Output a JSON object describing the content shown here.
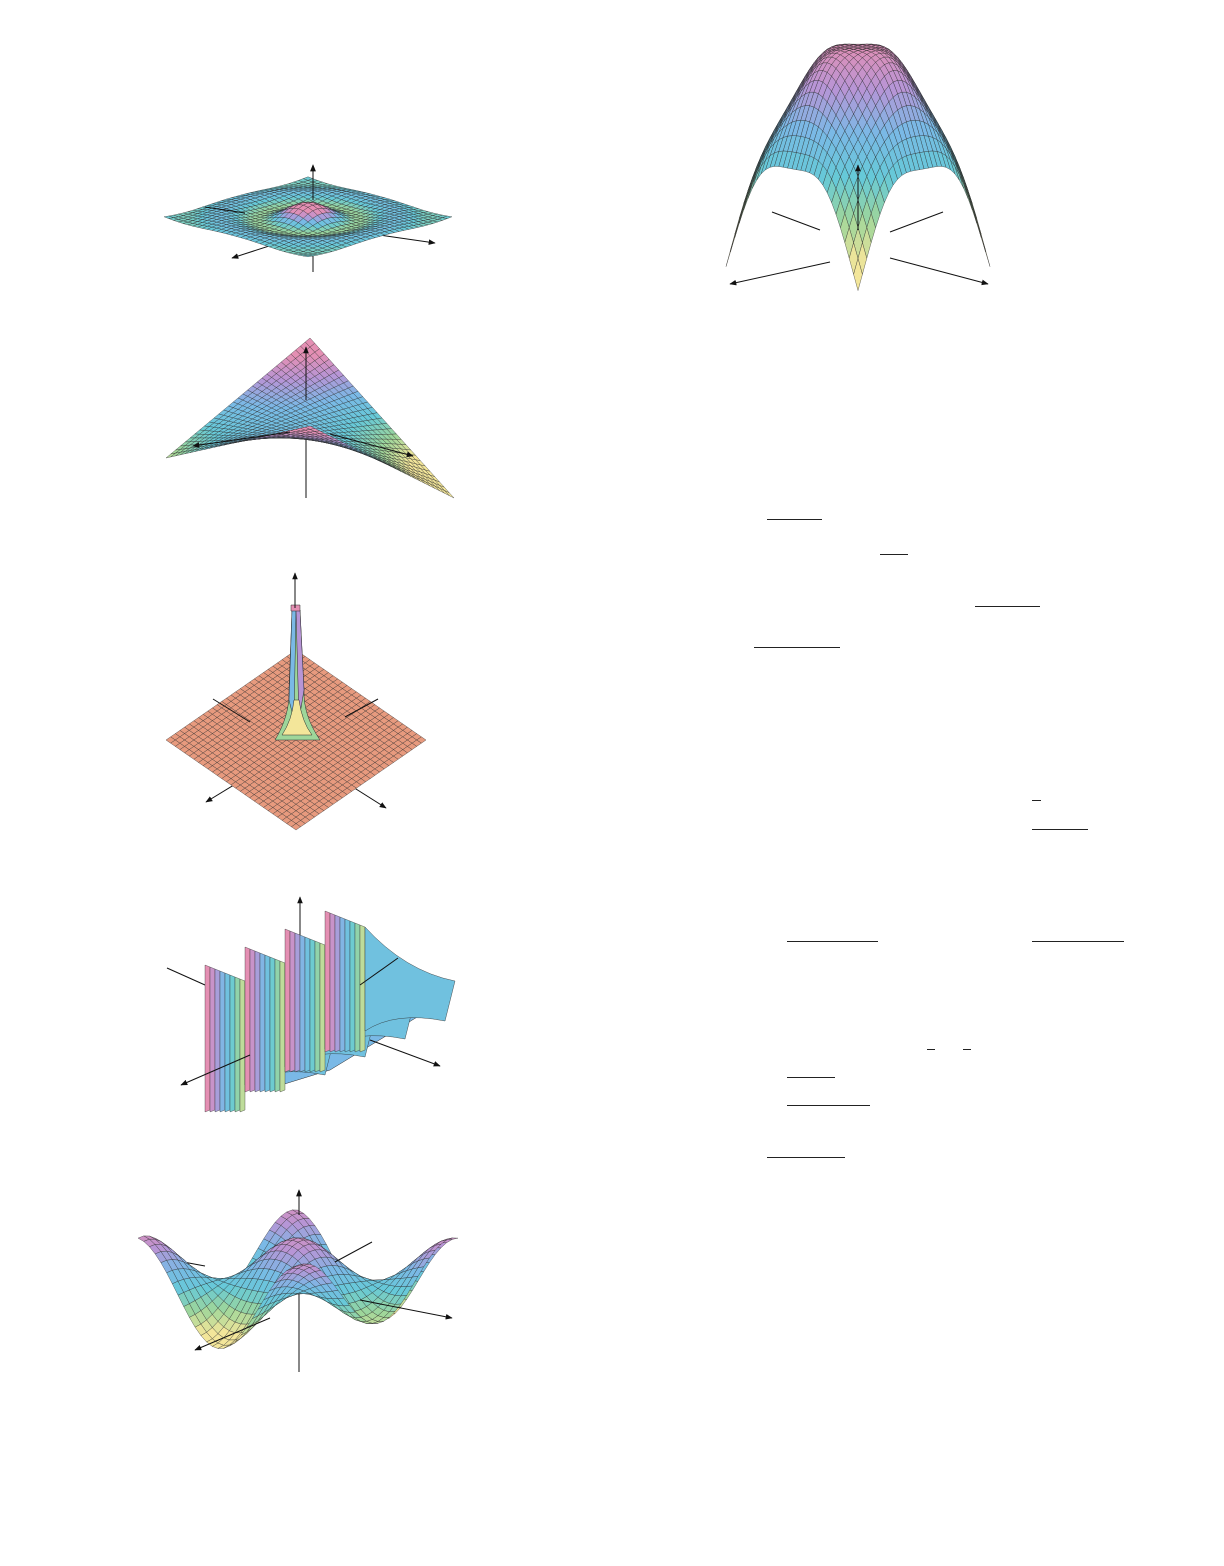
{
  "figures": [
    {
      "id": "ripple",
      "shape": "radial-ripple-surface",
      "colormap": "rainbow-pastel"
    },
    {
      "id": "saddle-sheet",
      "shape": "twisted-saddle-surface",
      "colormap": "rainbow-pastel"
    },
    {
      "id": "spike",
      "shape": "narrow-peak-on-plane",
      "colormap": "salmon-plane"
    },
    {
      "id": "folds",
      "shape": "folded-walls-surface",
      "colormap": "rainbow-pastel"
    },
    {
      "id": "wavy-bowl",
      "shape": "oscillating-saddle-surface",
      "colormap": "rainbow-pastel"
    },
    {
      "id": "dome",
      "shape": "inverted-paraboloid-dome",
      "colormap": "rainbow-pastel"
    }
  ],
  "colors": {
    "pink": "#e48fb3",
    "violet": "#b795d6",
    "blue": "#7ab9e6",
    "cyan": "#66c9d8",
    "green": "#9ed69a",
    "yellow": "#f3e69a",
    "salmon": "#e79a7e",
    "mesh": "#2a2a2a",
    "axis": "#111111"
  },
  "fraction_bars": 12
}
